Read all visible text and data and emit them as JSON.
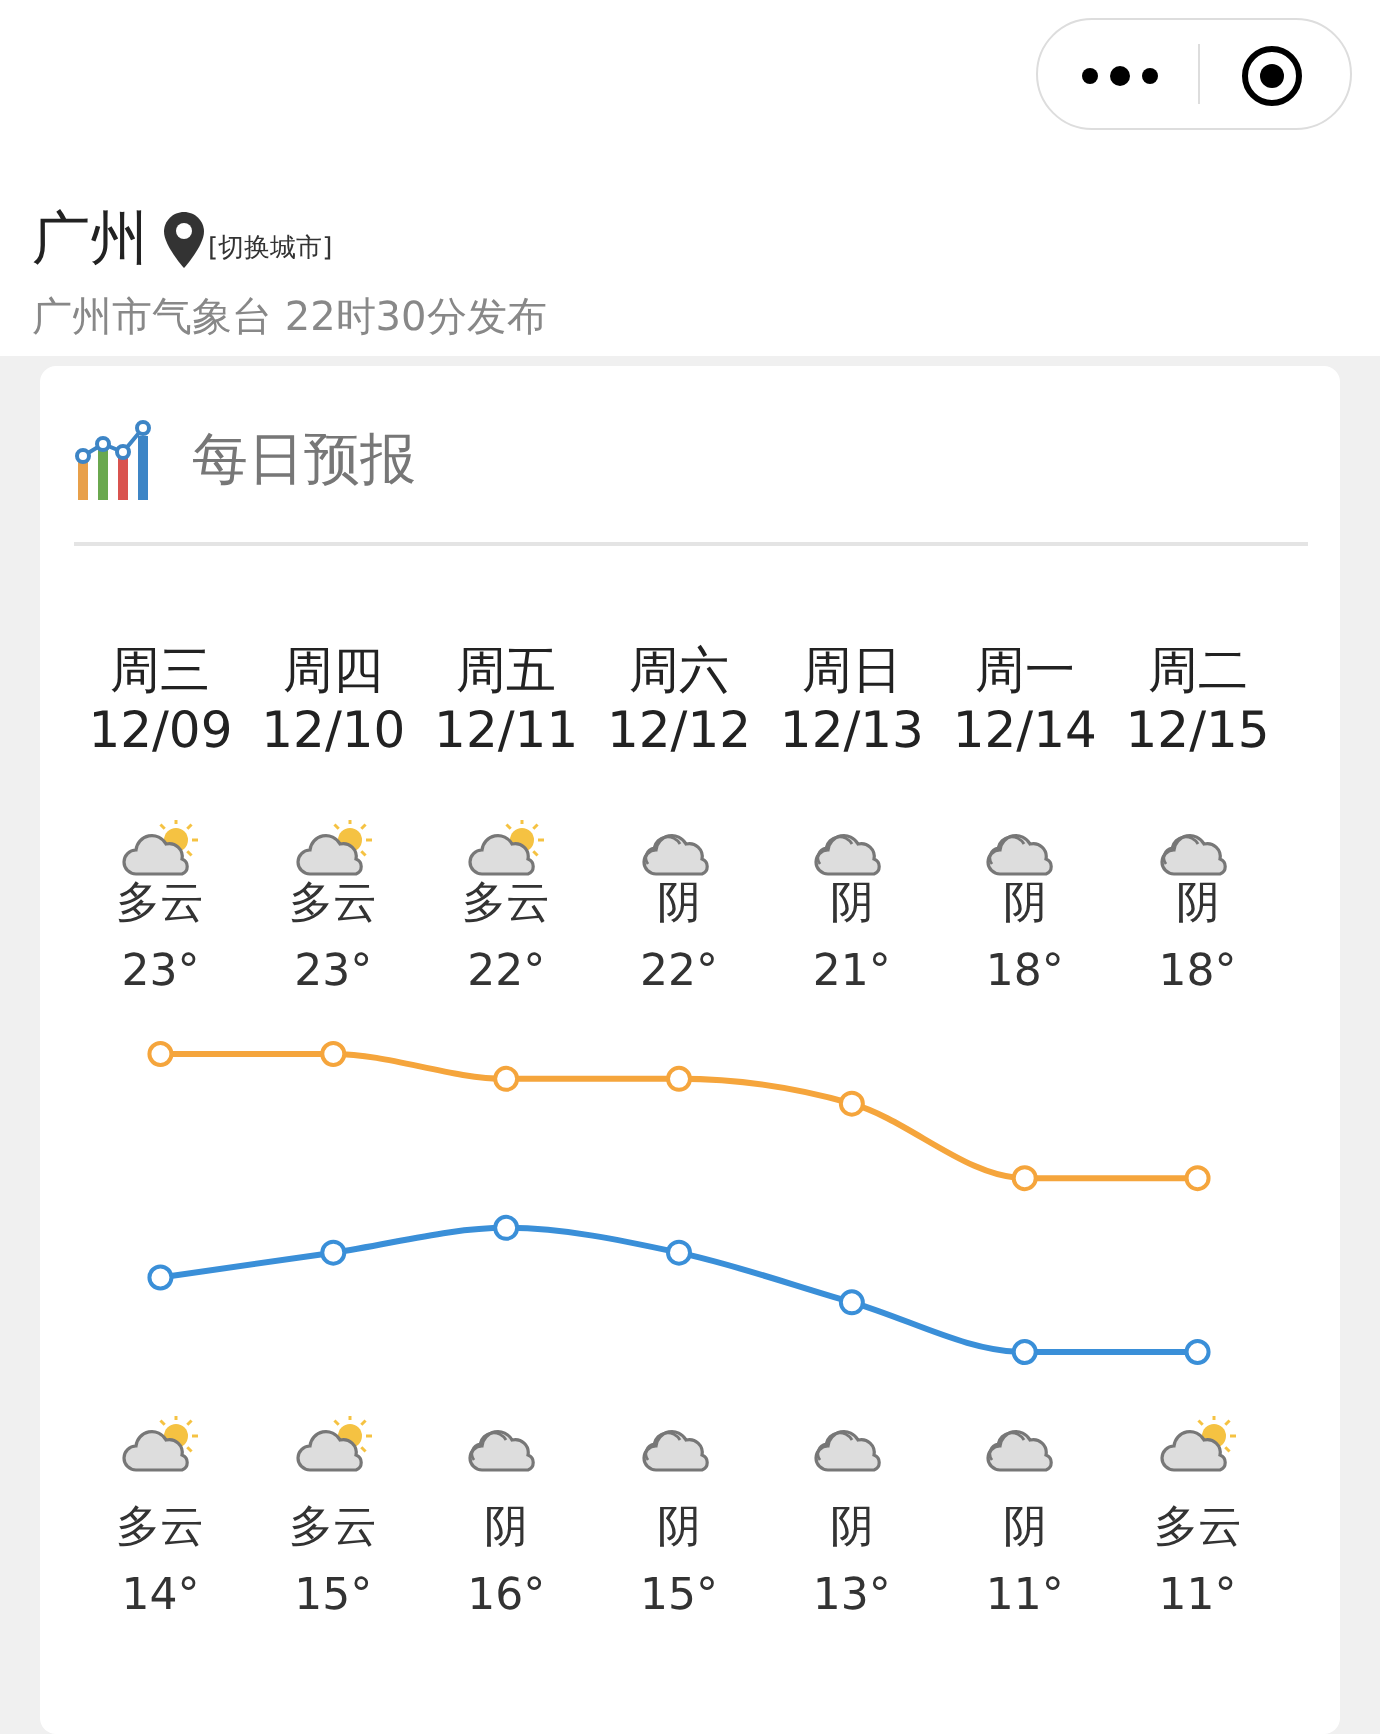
{
  "chart_data": {
    "type": "line",
    "title": "每日预报",
    "annotations": [
      "广州",
      "[切换城市]",
      "广州市气象台 22时30分发布"
    ],
    "categories": [
      "周三\n12/09",
      "周四\n12/10",
      "周五\n12/11",
      "周六\n12/12",
      "周日\n12/13",
      "周一\n12/14",
      "周二\n12/15"
    ],
    "series": [
      {
        "color": "#f5a53c",
        "values": [
          23,
          23,
          22,
          22,
          21,
          18,
          18
        ],
        "value_labels": [
          "多云\n23°",
          "多云\n23°",
          "多云\n22°",
          "阴\n22°",
          "阴\n21°",
          "阴\n18°",
          "阴\n18°"
        ]
      },
      {
        "color": "#3a8fd8",
        "values": [
          14,
          15,
          16,
          15,
          13,
          11,
          11
        ],
        "value_labels": [
          "多云\n14°",
          "多云\n15°",
          "阴\n16°",
          "阴\n15°",
          "阴\n13°",
          "阴\n11°",
          "多云\n11°"
        ]
      }
    ],
    "tick_labels": "x",
    "grid": false,
    "legend": false,
    "marker": "circle",
    "line_style": "solid"
  }
}
